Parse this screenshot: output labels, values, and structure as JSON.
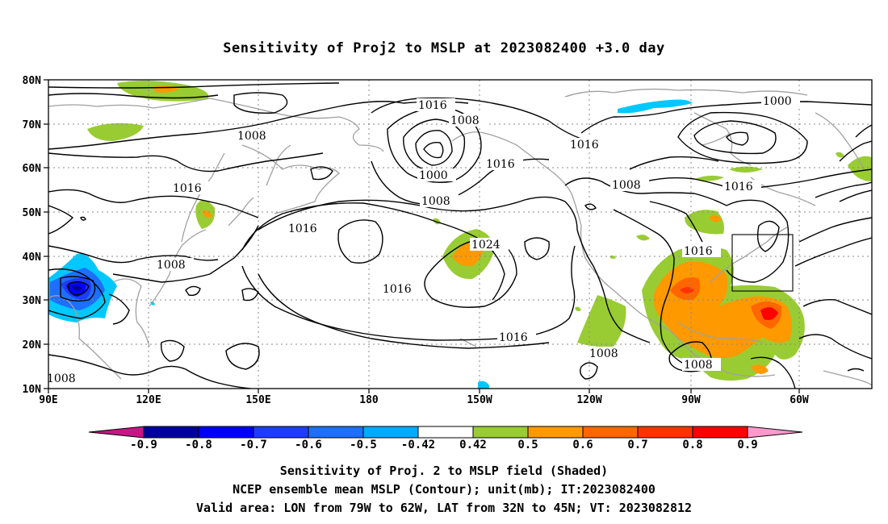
{
  "title": "Sensitivity of Proj2 to MSLP at 2023082400 +3.0 day",
  "map": {
    "lon_range": [
      "90E",
      "45W"
    ],
    "lat_range": [
      "10N",
      "80N"
    ],
    "lat_labels": [
      "10N",
      "20N",
      "30N",
      "40N",
      "50N",
      "60N",
      "70N",
      "80N"
    ],
    "lon_labels": [
      "90E",
      "120E",
      "150E",
      "180",
      "150W",
      "120W",
      "90W",
      "60W"
    ],
    "contour_labels": [
      {
        "text": "1016"
      },
      {
        "text": "1008"
      },
      {
        "text": "1000"
      },
      {
        "text": "1016"
      },
      {
        "text": "1008"
      },
      {
        "text": "1016"
      },
      {
        "text": "1008"
      },
      {
        "text": "1016"
      },
      {
        "text": "1016"
      },
      {
        "text": "1000"
      },
      {
        "text": "1008"
      },
      {
        "text": "1016"
      },
      {
        "text": "1016"
      },
      {
        "text": "1024"
      },
      {
        "text": "1016"
      },
      {
        "text": "1008"
      },
      {
        "text": "1016"
      },
      {
        "text": "1016"
      },
      {
        "text": "1008"
      },
      {
        "text": "1008"
      },
      {
        "text": "1008"
      }
    ],
    "valid_area_box": {
      "lon": [
        "79W",
        "62W"
      ],
      "lat": [
        "32N",
        "45N"
      ]
    }
  },
  "colorbar": {
    "labels": [
      "-0.9",
      "-0.8",
      "-0.7",
      "-0.6",
      "-0.5",
      "-0.42",
      "0.42",
      "0.5",
      "0.6",
      "0.7",
      "0.8",
      "0.9"
    ],
    "colors": [
      "#c71585",
      "#0000a0",
      "#0000ff",
      "#1e3cff",
      "#1e6eff",
      "#00aaff",
      "#00c8ff",
      "#ffffff",
      "#99cc33",
      "#ff9900",
      "#ff6600",
      "#ff3300",
      "#ff0000",
      "#ff99cc"
    ]
  },
  "footer": {
    "line1": "Sensitivity of Proj. 2 to MSLP field (Shaded)",
    "line2": "NCEP ensemble mean MSLP (Contour); unit(mb); IT:2023082400",
    "line3": "Valid area: LON from 79W to 62W, LAT from 32N to 45N; VT: 2023082812"
  }
}
